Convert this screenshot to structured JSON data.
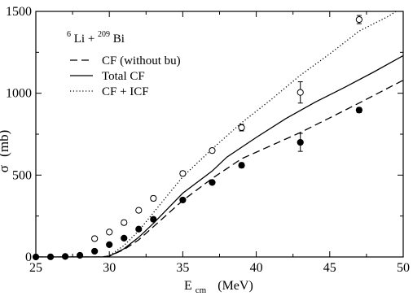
{
  "chart_data": {
    "type": "scatter",
    "title": "",
    "xlabel": "E",
    "xlabel_sub": "cm",
    "xlabel_unit": "(MeV)",
    "ylabel": "σ",
    "ylabel_unit": "(mb)",
    "xlim": [
      25,
      50
    ],
    "ylim": [
      0,
      1500
    ],
    "x_ticks": [
      25,
      30,
      35,
      40,
      45,
      50
    ],
    "y_ticks": [
      0,
      500,
      1000,
      1500
    ],
    "grid": false,
    "legend_position": "top-left",
    "reaction": {
      "a1": "6",
      "e1": "Li + ",
      "a2": "209",
      "e2": "Bi"
    },
    "lines": [
      {
        "name": "CF (without bu)",
        "dash": "dashed",
        "x": [
          25,
          29.5,
          30,
          31,
          32,
          33,
          35,
          37,
          39,
          41,
          43,
          45,
          47,
          50
        ],
        "y": [
          0,
          0,
          5,
          45,
          105,
          185,
          345,
          480,
          600,
          680,
          760,
          850,
          940,
          1080
        ]
      },
      {
        "name": "Total CF",
        "dash": "solid",
        "x": [
          25,
          29.5,
          30,
          31,
          32,
          33,
          35,
          37,
          38,
          40,
          42,
          44,
          46,
          48,
          50
        ],
        "y": [
          0,
          0,
          5,
          50,
          120,
          205,
          390,
          525,
          610,
          730,
          845,
          945,
          1035,
          1130,
          1230
        ]
      },
      {
        "name": "CF + ICF",
        "dash": "dotted",
        "x": [
          25,
          29.5,
          30,
          31,
          32,
          33,
          35,
          37,
          39,
          41,
          43,
          45,
          47,
          49,
          49.5
        ],
        "y": [
          0,
          0,
          8,
          70,
          160,
          270,
          490,
          660,
          820,
          960,
          1110,
          1240,
          1380,
          1470,
          1500
        ]
      }
    ],
    "series": [
      {
        "name": "CF",
        "marker": "filled-circle",
        "x": [
          25,
          26,
          27,
          28,
          29,
          30,
          31,
          32,
          33,
          35,
          37,
          39,
          43,
          47
        ],
        "y": [
          0,
          1,
          3,
          10,
          35,
          75,
          115,
          170,
          230,
          348,
          455,
          560,
          700,
          897
        ],
        "err": [
          0,
          0,
          0,
          0,
          0,
          0,
          0,
          0,
          0,
          0,
          0,
          15,
          55,
          15
        ]
      },
      {
        "name": "CF + ICF",
        "marker": "open-circle",
        "x": [
          29,
          30,
          31,
          32,
          33,
          35,
          37,
          39,
          43,
          47
        ],
        "y": [
          112,
          152,
          210,
          285,
          358,
          510,
          650,
          790,
          1005,
          1450
        ],
        "err": [
          12,
          12,
          14,
          12,
          14,
          14,
          14,
          20,
          65,
          25
        ]
      }
    ]
  }
}
